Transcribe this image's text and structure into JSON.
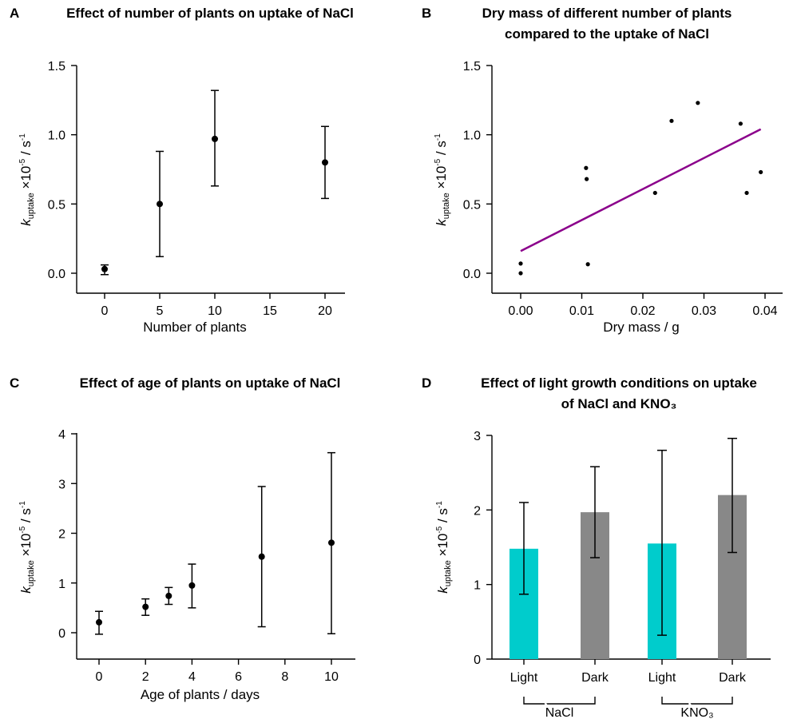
{
  "ylabel_parts": {
    "k": "k",
    "sub": "uptake",
    "times": " ×10",
    "exp": "-5",
    "unit": " / s",
    "unit_exp": "-1"
  },
  "chart_data": [
    {
      "panel": "A",
      "type": "scatter",
      "title": "Effect of number of plants on uptake of NaCl",
      "xlabel": "Number of plants",
      "ylabel": "k uptake ×10-5 / s-1",
      "xlim": [
        -2,
        22
      ],
      "ylim": [
        -0.05,
        1.5
      ],
      "xticks": [
        "0",
        "5",
        "10",
        "15",
        "20"
      ],
      "yticks": [
        "0.0",
        "0.5",
        "1.0",
        "1.5"
      ],
      "points": [
        {
          "x": 0,
          "y": 0.03,
          "err_low": -0.01,
          "err_high": 0.06
        },
        {
          "x": 5,
          "y": 0.5,
          "err_low": 0.12,
          "err_high": 0.88
        },
        {
          "x": 10,
          "y": 0.97,
          "err_low": 0.63,
          "err_high": 1.32
        },
        {
          "x": 20,
          "y": 0.8,
          "err_low": 0.54,
          "err_high": 1.06
        }
      ]
    },
    {
      "panel": "B",
      "type": "scatter",
      "title_lines": [
        "Dry mass of different number of plants",
        "compared to the uptake of NaCl"
      ],
      "xlabel": "Dry mass / g",
      "ylabel": "k uptake ×10-5 / s-1",
      "xlim": [
        -0.003,
        0.041
      ],
      "ylim": [
        -0.05,
        1.5
      ],
      "xticks": [
        "0.00",
        "0.01",
        "0.02",
        "0.03",
        "0.04"
      ],
      "yticks": [
        "0.0",
        "0.5",
        "1.0",
        "1.5"
      ],
      "points": [
        {
          "x": 0.0,
          "y": 0.0
        },
        {
          "x": 0.0,
          "y": 0.07
        },
        {
          "x": 0.0107,
          "y": 0.76
        },
        {
          "x": 0.0108,
          "y": 0.68
        },
        {
          "x": 0.011,
          "y": 0.065
        },
        {
          "x": 0.022,
          "y": 0.58
        },
        {
          "x": 0.0247,
          "y": 1.1
        },
        {
          "x": 0.029,
          "y": 1.23
        },
        {
          "x": 0.036,
          "y": 1.08
        },
        {
          "x": 0.037,
          "y": 0.58
        },
        {
          "x": 0.0393,
          "y": 0.73
        }
      ],
      "fit_line": {
        "x": [
          0.0,
          0.0393
        ],
        "y": [
          0.16,
          1.04
        ],
        "color": "#8b008b"
      }
    },
    {
      "panel": "C",
      "type": "scatter",
      "title": "Effect of age of plants on uptake of NaCl",
      "xlabel": "Age of plants / days",
      "ylabel": "k uptake ×10-5 / s-1",
      "xlim": [
        -0.7,
        11
      ],
      "ylim": [
        -0.5,
        4
      ],
      "xticks": [
        "0",
        "2",
        "4",
        "6",
        "8",
        "10"
      ],
      "yticks": [
        "0",
        "1",
        "2",
        "3",
        "4"
      ],
      "points": [
        {
          "x": 0,
          "y": 0.21,
          "err_low": -0.03,
          "err_high": 0.43
        },
        {
          "x": 2,
          "y": 0.52,
          "err_low": 0.35,
          "err_high": 0.68
        },
        {
          "x": 3,
          "y": 0.74,
          "err_low": 0.57,
          "err_high": 0.91
        },
        {
          "x": 4,
          "y": 0.95,
          "err_low": 0.5,
          "err_high": 1.38
        },
        {
          "x": 7,
          "y": 1.53,
          "err_low": 0.12,
          "err_high": 2.94
        },
        {
          "x": 10,
          "y": 1.81,
          "err_low": -0.02,
          "err_high": 3.62
        }
      ]
    },
    {
      "panel": "D",
      "type": "bar",
      "title_lines": [
        "Effect of light growth conditions on uptake",
        "of NaCl and KNO₃"
      ],
      "ylabel": "k uptake ×10-5 / s-1",
      "ylim": [
        0,
        3
      ],
      "yticks": [
        "0",
        "1",
        "2",
        "3"
      ],
      "categories": [
        "Light",
        "Dark",
        "Light",
        "Dark"
      ],
      "groups": [
        "NaCl",
        "KNO₃"
      ],
      "values": [
        1.48,
        1.97,
        1.55,
        2.2
      ],
      "err_low": [
        0.87,
        1.36,
        0.32,
        1.43
      ],
      "err_high": [
        2.1,
        2.58,
        2.8,
        2.96
      ],
      "colors": [
        "#00cccc",
        "#888888",
        "#00cccc",
        "#888888"
      ]
    }
  ]
}
